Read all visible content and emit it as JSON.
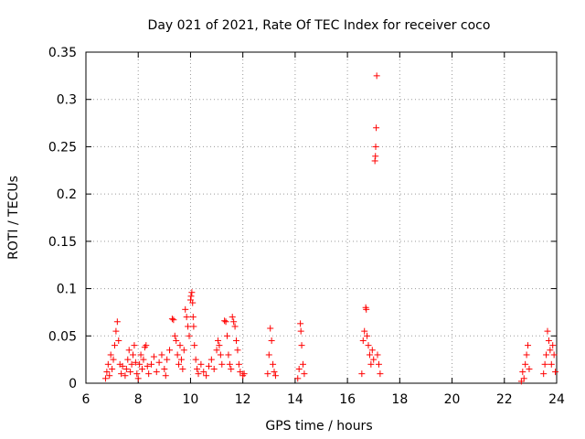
{
  "chart_data": {
    "type": "scatter",
    "title": "Day 021 of 2021, Rate Of TEC Index for receiver coco",
    "xlabel": "GPS time / hours",
    "ylabel": "ROTI / TECUs",
    "xlim": [
      6,
      24
    ],
    "ylim": [
      0,
      0.35
    ],
    "xticks": [
      6,
      8,
      10,
      12,
      14,
      16,
      18,
      20,
      22,
      24
    ],
    "xtick_labels": [
      "6",
      "8",
      "10",
      "12",
      "14",
      "16",
      "18",
      "20",
      "22",
      "24"
    ],
    "yticks": [
      0,
      0.05,
      0.1,
      0.15,
      0.2,
      0.25,
      0.3,
      0.35
    ],
    "ytick_labels": [
      "0",
      "0.05",
      "0.1",
      "0.15",
      "0.2",
      "0.25",
      "0.3",
      "0.35"
    ],
    "grid": true,
    "marker": "+",
    "marker_color": "#ff0000",
    "series": [
      {
        "name": "ROTI",
        "points": [
          [
            6.75,
            0.005
          ],
          [
            6.8,
            0.012
          ],
          [
            6.85,
            0.02
          ],
          [
            6.9,
            0.008
          ],
          [
            6.95,
            0.03
          ],
          [
            7.0,
            0.015
          ],
          [
            7.05,
            0.025
          ],
          [
            7.1,
            0.04
          ],
          [
            7.15,
            0.055
          ],
          [
            7.2,
            0.065
          ],
          [
            7.25,
            0.045
          ],
          [
            7.3,
            0.02
          ],
          [
            7.35,
            0.01
          ],
          [
            7.4,
            0.018
          ],
          [
            7.5,
            0.008
          ],
          [
            7.55,
            0.015
          ],
          [
            7.6,
            0.025
          ],
          [
            7.65,
            0.035
          ],
          [
            7.7,
            0.012
          ],
          [
            7.75,
            0.02
          ],
          [
            7.8,
            0.03
          ],
          [
            7.85,
            0.04
          ],
          [
            7.9,
            0.022
          ],
          [
            7.95,
            0.01
          ],
          [
            8.0,
            0.005
          ],
          [
            8.05,
            0.02
          ],
          [
            8.1,
            0.03
          ],
          [
            8.15,
            0.015
          ],
          [
            8.2,
            0.025
          ],
          [
            8.25,
            0.038
          ],
          [
            8.3,
            0.04
          ],
          [
            8.35,
            0.018
          ],
          [
            8.4,
            0.01
          ],
          [
            8.5,
            0.02
          ],
          [
            8.6,
            0.028
          ],
          [
            8.7,
            0.012
          ],
          [
            8.8,
            0.022
          ],
          [
            8.9,
            0.03
          ],
          [
            9.0,
            0.015
          ],
          [
            9.05,
            0.008
          ],
          [
            9.1,
            0.025
          ],
          [
            9.2,
            0.035
          ],
          [
            9.3,
            0.068
          ],
          [
            9.35,
            0.067
          ],
          [
            9.4,
            0.05
          ],
          [
            9.45,
            0.045
          ],
          [
            9.5,
            0.03
          ],
          [
            9.55,
            0.02
          ],
          [
            9.6,
            0.04
          ],
          [
            9.65,
            0.025
          ],
          [
            9.7,
            0.015
          ],
          [
            9.75,
            0.035
          ],
          [
            9.8,
            0.078
          ],
          [
            9.85,
            0.07
          ],
          [
            9.9,
            0.06
          ],
          [
            9.95,
            0.05
          ],
          [
            10.0,
            0.088
          ],
          [
            10.02,
            0.092
          ],
          [
            10.05,
            0.096
          ],
          [
            10.08,
            0.085
          ],
          [
            10.1,
            0.07
          ],
          [
            10.12,
            0.06
          ],
          [
            10.15,
            0.04
          ],
          [
            10.2,
            0.025
          ],
          [
            10.25,
            0.015
          ],
          [
            10.3,
            0.01
          ],
          [
            10.4,
            0.02
          ],
          [
            10.5,
            0.012
          ],
          [
            10.6,
            0.008
          ],
          [
            10.7,
            0.018
          ],
          [
            10.8,
            0.025
          ],
          [
            10.9,
            0.015
          ],
          [
            11.0,
            0.035
          ],
          [
            11.05,
            0.045
          ],
          [
            11.1,
            0.04
          ],
          [
            11.15,
            0.03
          ],
          [
            11.2,
            0.02
          ],
          [
            11.3,
            0.066
          ],
          [
            11.35,
            0.065
          ],
          [
            11.4,
            0.05
          ],
          [
            11.45,
            0.03
          ],
          [
            11.5,
            0.02
          ],
          [
            11.55,
            0.015
          ],
          [
            11.6,
            0.07
          ],
          [
            11.65,
            0.065
          ],
          [
            11.7,
            0.06
          ],
          [
            11.75,
            0.045
          ],
          [
            11.8,
            0.035
          ],
          [
            11.85,
            0.02
          ],
          [
            11.9,
            0.012
          ],
          [
            12.0,
            0.008
          ],
          [
            12.05,
            0.01
          ],
          [
            12.95,
            0.01
          ],
          [
            13.0,
            0.03
          ],
          [
            13.05,
            0.058
          ],
          [
            13.1,
            0.045
          ],
          [
            13.15,
            0.02
          ],
          [
            13.2,
            0.012
          ],
          [
            13.25,
            0.008
          ],
          [
            14.1,
            0.005
          ],
          [
            14.15,
            0.015
          ],
          [
            14.2,
            0.063
          ],
          [
            14.22,
            0.055
          ],
          [
            14.25,
            0.04
          ],
          [
            14.3,
            0.02
          ],
          [
            14.35,
            0.01
          ],
          [
            16.55,
            0.01
          ],
          [
            16.6,
            0.045
          ],
          [
            16.65,
            0.055
          ],
          [
            16.7,
            0.08
          ],
          [
            16.72,
            0.078
          ],
          [
            16.75,
            0.05
          ],
          [
            16.8,
            0.04
          ],
          [
            16.85,
            0.03
          ],
          [
            16.9,
            0.02
          ],
          [
            16.95,
            0.035
          ],
          [
            17.0,
            0.025
          ],
          [
            17.05,
            0.235
          ],
          [
            17.07,
            0.24
          ],
          [
            17.08,
            0.25
          ],
          [
            17.1,
            0.27
          ],
          [
            17.12,
            0.325
          ],
          [
            17.15,
            0.03
          ],
          [
            17.2,
            0.02
          ],
          [
            17.25,
            0.01
          ],
          [
            22.65,
            0.002
          ],
          [
            22.7,
            0.012
          ],
          [
            22.75,
            0.005
          ],
          [
            22.8,
            0.02
          ],
          [
            22.85,
            0.03
          ],
          [
            22.9,
            0.04
          ],
          [
            22.95,
            0.015
          ],
          [
            23.5,
            0.01
          ],
          [
            23.55,
            0.02
          ],
          [
            23.6,
            0.03
          ],
          [
            23.65,
            0.055
          ],
          [
            23.7,
            0.045
          ],
          [
            23.75,
            0.035
          ],
          [
            23.8,
            0.02
          ],
          [
            23.85,
            0.04
          ],
          [
            23.9,
            0.03
          ],
          [
            23.95,
            0.012
          ]
        ]
      }
    ]
  }
}
